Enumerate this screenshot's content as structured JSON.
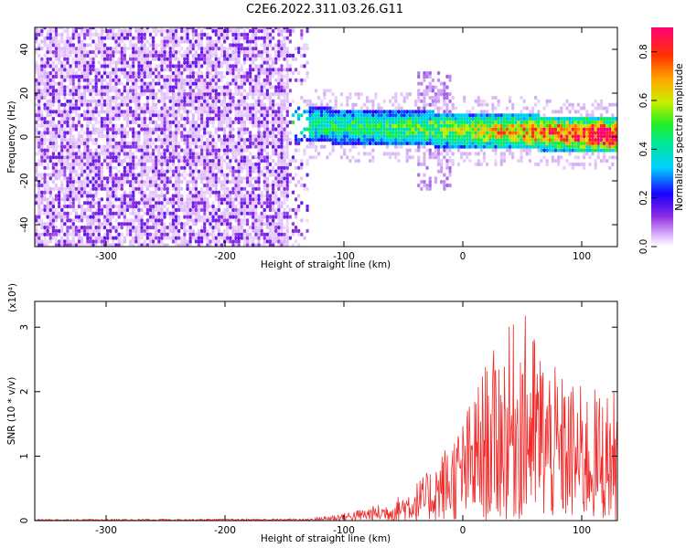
{
  "title": "C2E6.2022.311.03.26.G11",
  "chart_data": [
    {
      "type": "heatmap",
      "xlabel": "Height of straight line (km)",
      "ylabel": "Frequency (Hz)",
      "xlim": [
        -360,
        130
      ],
      "ylim": [
        -50,
        50
      ],
      "x_ticks": [
        -300,
        -200,
        -100,
        0,
        100
      ],
      "y_ticks": [
        -40,
        -20,
        0,
        20,
        40
      ],
      "colorbar": {
        "label": "Normalized spectral amplitude",
        "range": [
          0,
          0.9
        ],
        "ticks": [
          "0.0",
          "0.2",
          "0.4",
          "0.6",
          "0.8"
        ]
      },
      "features": [
        {
          "x_range": [
            -360,
            -130
          ],
          "freq_range": [
            -50,
            50
          ],
          "amplitude": 0.05
        },
        {
          "x_range": [
            -145,
            130
          ],
          "center_freq": [
            5,
            0
          ],
          "halfwidth_hz": 5,
          "amplitude": [
            0.3,
            0.85
          ]
        },
        {
          "x_range": [
            -40,
            -10
          ],
          "freq_range": [
            -25,
            30
          ],
          "amplitude": 0.1
        }
      ]
    },
    {
      "type": "line",
      "xlabel": "Height of straight line (km)",
      "ylabel": "SNR (10 * v/v)",
      "multiplier": "(x10⁴)",
      "xlim": [
        -360,
        130
      ],
      "ylim": [
        0,
        3.4
      ],
      "x_ticks": [
        -300,
        -200,
        -100,
        0,
        100
      ],
      "y_ticks": [
        0,
        1,
        2,
        3
      ],
      "color": "#ef2b2b",
      "envelope": [
        {
          "x": -360,
          "y": 0.02
        },
        {
          "x": -130,
          "y": 0.03
        },
        {
          "x": -100,
          "y": 0.12
        },
        {
          "x": -60,
          "y": 0.3
        },
        {
          "x": -30,
          "y": 0.75
        },
        {
          "x": 0,
          "y": 1.6
        },
        {
          "x": 20,
          "y": 2.5
        },
        {
          "x": 50,
          "y": 3.3
        },
        {
          "x": 80,
          "y": 2.3
        },
        {
          "x": 100,
          "y": 2.1
        },
        {
          "x": 130,
          "y": 2.0
        }
      ]
    }
  ]
}
